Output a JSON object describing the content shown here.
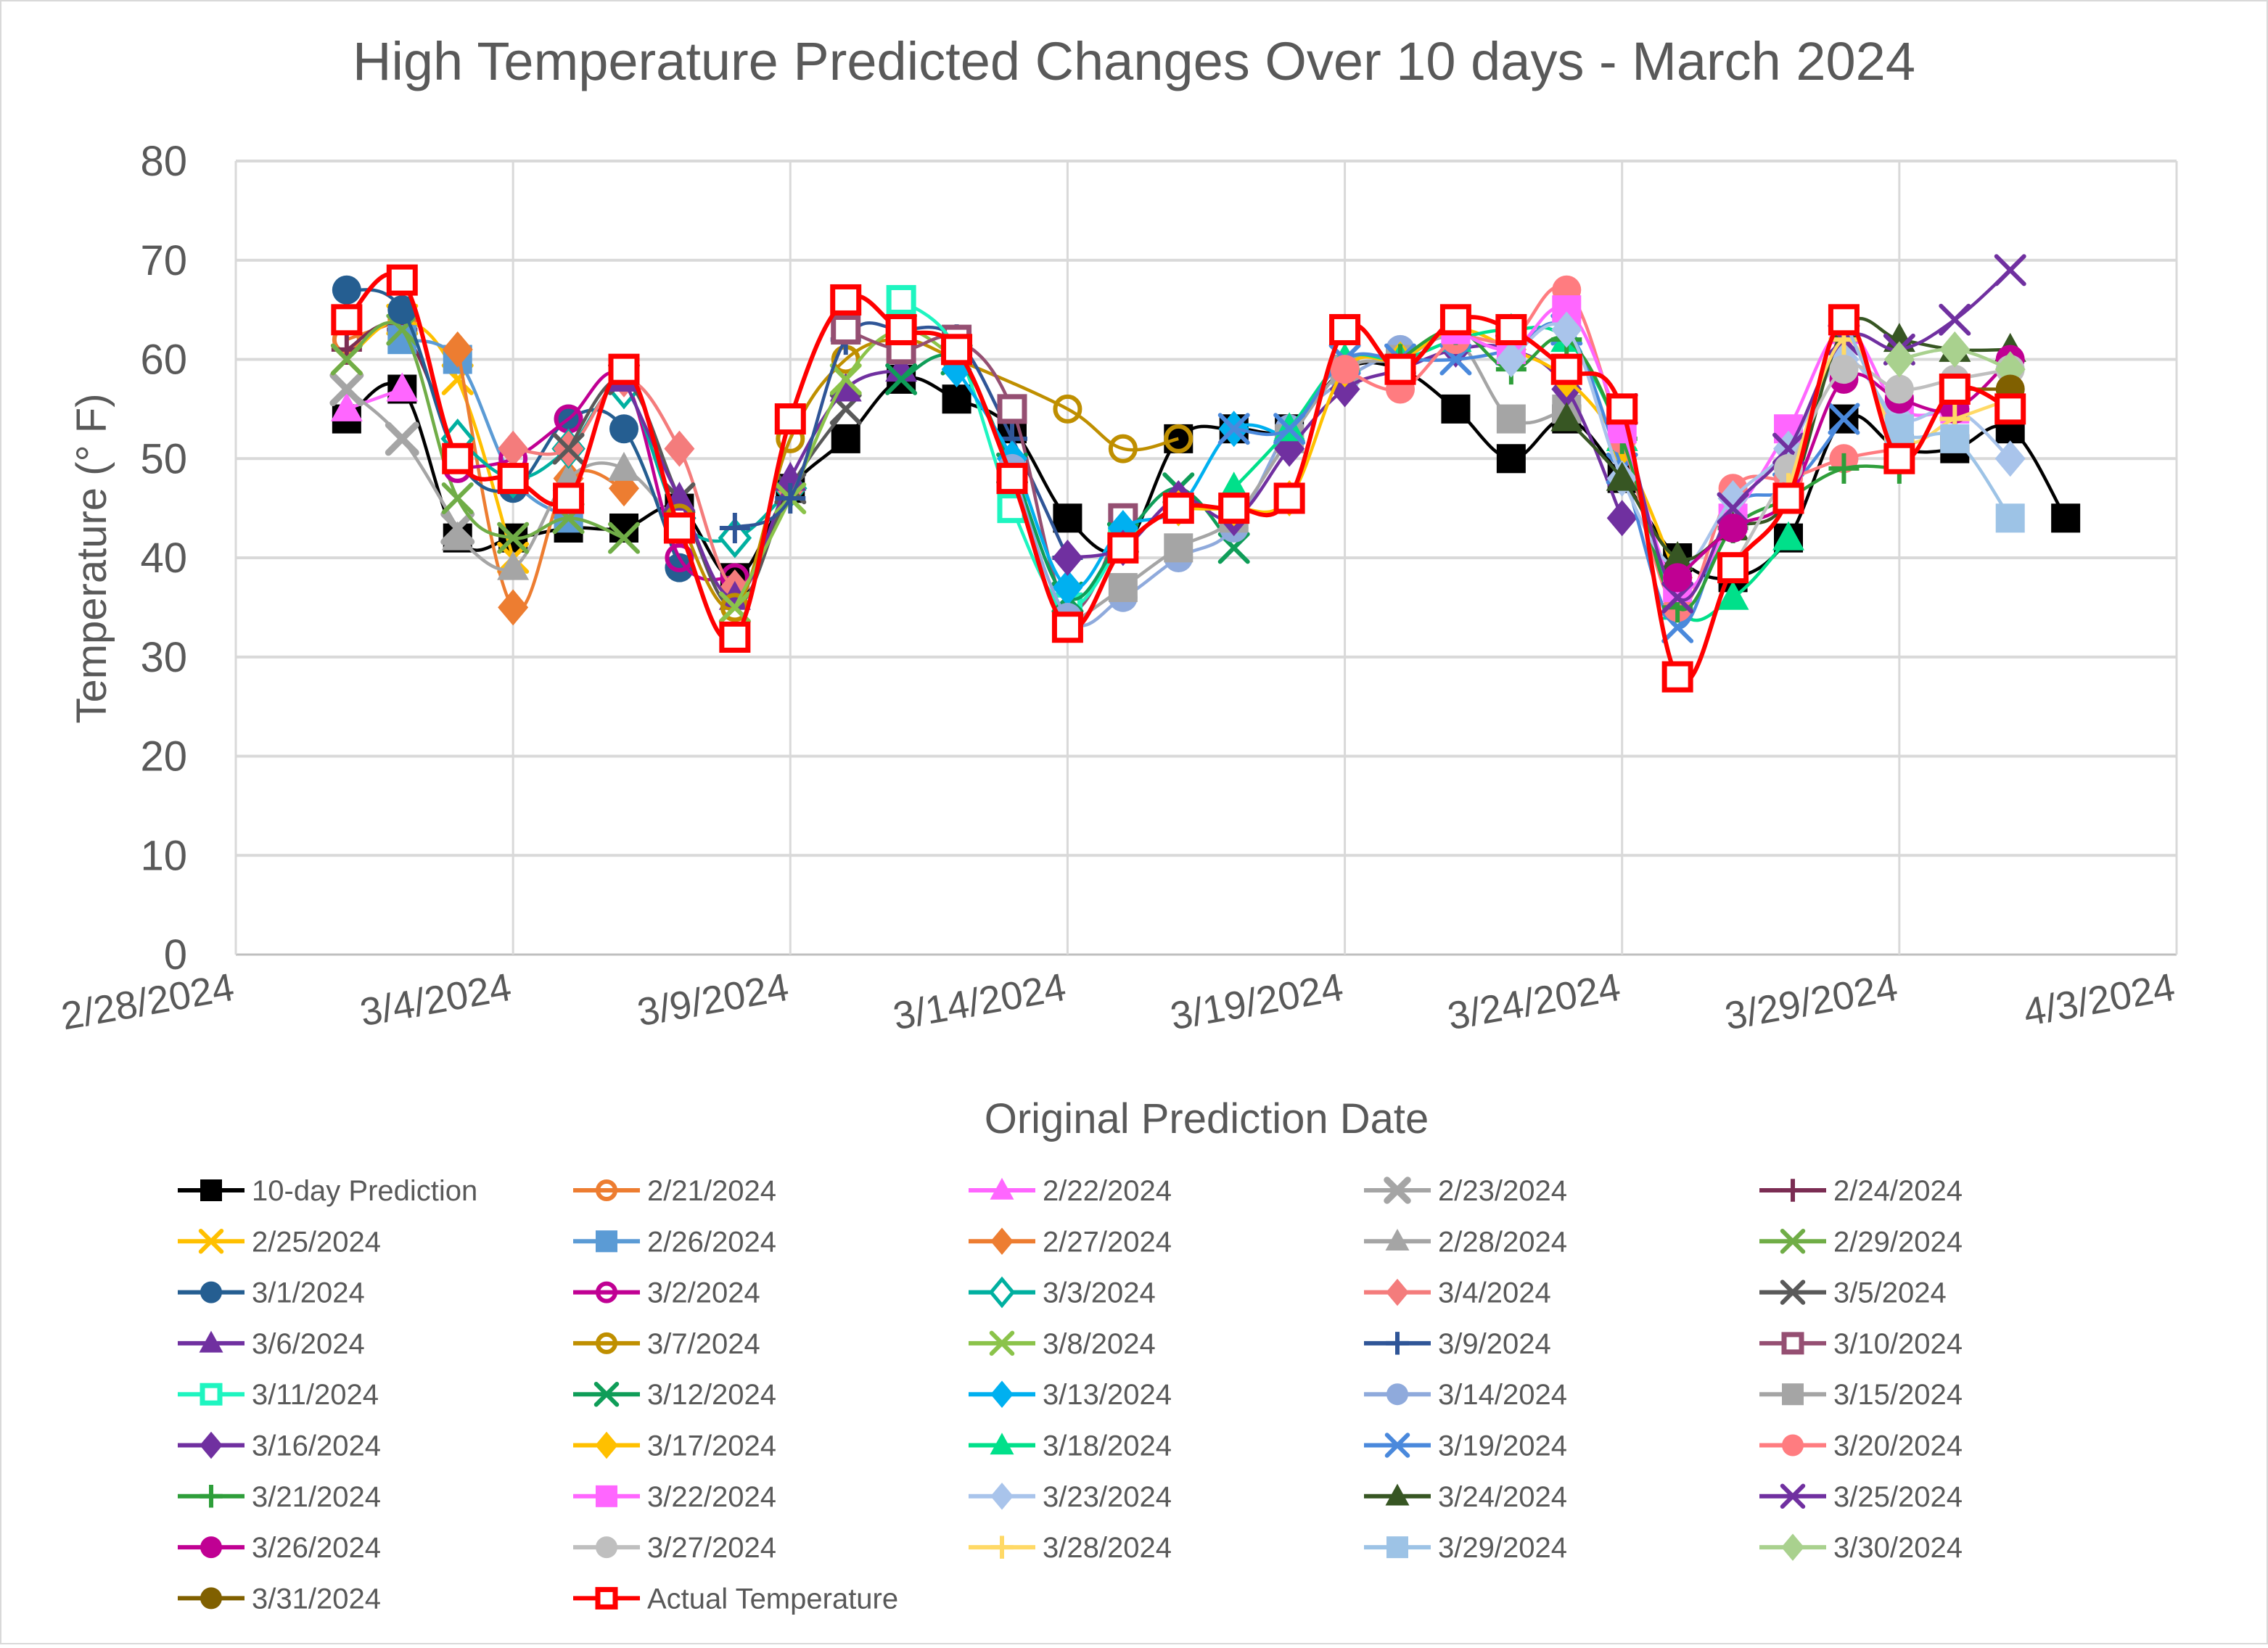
{
  "chart_data": {
    "type": "line",
    "title": "High Temperature Predicted Changes Over 10 days - March 2024",
    "xlabel": "Original Prediction Date",
    "ylabel": "Temperature (° F)",
    "ylim": [
      0,
      80
    ],
    "yticks": [
      0,
      10,
      20,
      30,
      40,
      50,
      60,
      70,
      80
    ],
    "xlim_day": [
      0,
      35
    ],
    "xticks": [
      {
        "day": 0,
        "label": "2/28/2024"
      },
      {
        "day": 5,
        "label": "3/4/2024"
      },
      {
        "day": 10,
        "label": "3/9/2024"
      },
      {
        "day": 15,
        "label": "3/14/2024"
      },
      {
        "day": 20,
        "label": "3/19/2024"
      },
      {
        "day": 25,
        "label": "3/24/2024"
      },
      {
        "day": 30,
        "label": "3/29/2024"
      },
      {
        "day": 35,
        "label": "4/3/2024"
      }
    ],
    "grid": true,
    "legend_position": "bottom",
    "x_day_origin": "2/28/2024",
    "series": [
      {
        "name": "10-day Prediction",
        "color": "#000000",
        "marker": "square",
        "x": [
          2,
          3,
          4,
          5,
          6,
          7,
          8,
          9,
          10,
          11,
          12,
          13,
          14,
          15,
          16,
          17,
          18,
          19,
          20,
          21,
          22,
          23,
          24,
          25,
          26,
          27,
          28,
          29,
          30,
          31,
          32,
          33
        ],
        "values": [
          54,
          57,
          42,
          42,
          43,
          43,
          45,
          38,
          47,
          52,
          58,
          56,
          53,
          44,
          41,
          52,
          53,
          53,
          59,
          59,
          55,
          50,
          54,
          48,
          40,
          38,
          42,
          54,
          51,
          51,
          53,
          44
        ]
      },
      {
        "name": "2/21/2024",
        "color": "#ED7D31",
        "marker": "circle-open",
        "x": [
          2,
          3
        ],
        "values": [
          62,
          64
        ]
      },
      {
        "name": "2/22/2024",
        "color": "#FF66FF",
        "marker": "triangle",
        "x": [
          2,
          3
        ],
        "values": [
          55,
          57
        ]
      },
      {
        "name": "2/23/2024",
        "color": "#A5A5A5",
        "marker": "x-bold",
        "x": [
          2,
          3,
          4
        ],
        "values": [
          57,
          52,
          43
        ]
      },
      {
        "name": "2/24/2024",
        "color": "#7B2D53",
        "marker": "plus",
        "x": [
          2,
          3,
          4
        ],
        "values": [
          61,
          63,
          50
        ]
      },
      {
        "name": "2/25/2024",
        "color": "#FFC000",
        "marker": "x",
        "x": [
          2,
          3,
          4,
          5
        ],
        "values": [
          60,
          64,
          58,
          40
        ]
      },
      {
        "name": "2/26/2024",
        "color": "#5B9BD5",
        "marker": "square",
        "x": [
          3,
          4,
          5,
          6
        ],
        "values": [
          62,
          60,
          48,
          44
        ]
      },
      {
        "name": "2/27/2024",
        "color": "#ED7D31",
        "marker": "diamond",
        "x": [
          4,
          5,
          6,
          7
        ],
        "values": [
          61,
          35,
          48,
          47
        ]
      },
      {
        "name": "2/28/2024",
        "color": "#A5A5A5",
        "marker": "triangle",
        "x": [
          4,
          5,
          6,
          7,
          8
        ],
        "values": [
          42,
          39,
          48,
          49,
          43
        ]
      },
      {
        "name": "2/29/2024",
        "color": "#70AD47",
        "marker": "x",
        "x": [
          2,
          3,
          4,
          5,
          6,
          7
        ],
        "values": [
          60,
          63,
          46,
          42,
          44,
          42
        ]
      },
      {
        "name": "3/1/2024",
        "color": "#255E91",
        "marker": "circle",
        "x": [
          2,
          3,
          4,
          5,
          6,
          7,
          8
        ],
        "values": [
          67,
          65,
          50,
          47,
          54,
          53,
          39
        ]
      },
      {
        "name": "3/2/2024",
        "color": "#C00093",
        "marker": "circle-open",
        "x": [
          4,
          5,
          6,
          7,
          8,
          9
        ],
        "values": [
          49,
          50,
          54,
          58,
          40,
          38
        ]
      },
      {
        "name": "3/3/2024",
        "color": "#00B0A0",
        "marker": "diamond-open",
        "x": [
          4,
          5,
          6,
          7,
          8,
          9,
          10
        ],
        "values": [
          52,
          48,
          51,
          57,
          44,
          42,
          47
        ]
      },
      {
        "name": "3/4/2024",
        "color": "#F47C7C",
        "marker": "diamond",
        "x": [
          5,
          6,
          7,
          8,
          9,
          10
        ],
        "values": [
          51,
          51,
          58,
          51,
          37,
          47
        ]
      },
      {
        "name": "3/5/2024",
        "color": "#595959",
        "marker": "x",
        "x": [
          6,
          7,
          8,
          9,
          10,
          11
        ],
        "values": [
          51,
          58,
          46,
          35,
          47,
          55
        ]
      },
      {
        "name": "3/6/2024",
        "color": "#7030A0",
        "marker": "triangle",
        "x": [
          7,
          8,
          9,
          10,
          11,
          12
        ],
        "values": [
          58,
          46,
          36,
          48,
          57,
          59
        ]
      },
      {
        "name": "3/7/2024",
        "color": "#BF8F00",
        "marker": "circle-open",
        "x": [
          8,
          9,
          10,
          11,
          12,
          13,
          15,
          16,
          17
        ],
        "values": [
          44,
          35,
          52,
          60,
          62,
          60,
          55,
          51,
          52
        ]
      },
      {
        "name": "3/8/2024",
        "color": "#8BC34A",
        "marker": "x",
        "x": [
          9,
          10,
          11,
          12,
          13
        ],
        "values": [
          35,
          46,
          58,
          63,
          60
        ]
      },
      {
        "name": "3/9/2024",
        "color": "#2F5597",
        "marker": "plus",
        "x": [
          9,
          10,
          11,
          12,
          13,
          14,
          15
        ],
        "values": [
          43,
          46,
          62,
          63,
          62,
          52,
          40
        ]
      },
      {
        "name": "3/10/2024",
        "color": "#954F72",
        "marker": "square-open",
        "x": [
          11,
          12,
          13,
          14,
          15,
          16
        ],
        "values": [
          63,
          61,
          62,
          55,
          35,
          44
        ]
      },
      {
        "name": "3/11/2024",
        "color": "#1EF5C0",
        "marker": "square-open",
        "x": [
          12,
          13,
          14,
          15,
          16
        ],
        "values": [
          66,
          61,
          45,
          35,
          42
        ]
      },
      {
        "name": "3/12/2024",
        "color": "#0F9D58",
        "marker": "x",
        "x": [
          12,
          13,
          14,
          15,
          16,
          17,
          18
        ],
        "values": [
          58,
          60,
          49,
          36,
          42,
          47,
          41
        ]
      },
      {
        "name": "3/13/2024",
        "color": "#00B0F0",
        "marker": "diamond",
        "x": [
          13,
          14,
          15,
          16,
          17,
          18,
          19
        ],
        "values": [
          59,
          50,
          37,
          43,
          45,
          53,
          52
        ]
      },
      {
        "name": "3/14/2024",
        "color": "#8FAADC",
        "marker": "circle",
        "x": [
          14,
          15,
          16,
          17,
          18,
          19,
          20,
          21
        ],
        "values": [
          49,
          34,
          36,
          40,
          43,
          53,
          58,
          61
        ]
      },
      {
        "name": "3/15/2024",
        "color": "#A5A5A5",
        "marker": "square",
        "x": [
          15,
          16,
          17,
          18,
          19,
          20,
          21,
          22,
          23,
          24
        ],
        "values": [
          33,
          37,
          41,
          44,
          52,
          59,
          60,
          62,
          54,
          55
        ]
      },
      {
        "name": "3/16/2024",
        "color": "#7030A0",
        "marker": "diamond",
        "x": [
          15,
          16,
          17,
          18,
          19,
          20,
          21,
          22,
          23,
          24,
          25
        ],
        "values": [
          40,
          41,
          46,
          44,
          51,
          57,
          59,
          61,
          61,
          57,
          44
        ]
      },
      {
        "name": "3/17/2024",
        "color": "#FFC000",
        "marker": "diamond",
        "x": [
          17,
          18,
          19,
          20,
          21,
          22,
          23,
          24,
          25,
          26
        ],
        "values": [
          45,
          45,
          46,
          59,
          60,
          63,
          61,
          58,
          51,
          38
        ]
      },
      {
        "name": "3/18/2024",
        "color": "#00E08A",
        "marker": "triangle",
        "x": [
          18,
          19,
          20,
          21,
          22,
          23,
          24,
          25,
          26,
          27,
          28
        ],
        "values": [
          47,
          53,
          60,
          60,
          62,
          63,
          62,
          52,
          35,
          36,
          42
        ]
      },
      {
        "name": "3/19/2024",
        "color": "#4A89DC",
        "marker": "x",
        "x": [
          18,
          19,
          20,
          21,
          22,
          23,
          24,
          25,
          26,
          27,
          28,
          29
        ],
        "values": [
          53,
          53,
          60,
          60,
          60,
          61,
          63,
          49,
          33,
          45,
          47,
          54
        ]
      },
      {
        "name": "3/20/2024",
        "color": "#FF7C80",
        "marker": "circle",
        "x": [
          20,
          21,
          22,
          23,
          24,
          25,
          26,
          27,
          28,
          29,
          30
        ],
        "values": [
          59,
          57,
          62,
          62,
          67,
          52,
          35,
          47,
          48,
          50,
          51
        ]
      },
      {
        "name": "3/21/2024",
        "color": "#2E9E3A",
        "marker": "plus",
        "x": [
          21,
          22,
          23,
          24,
          25,
          26,
          27,
          28,
          29,
          30
        ],
        "values": [
          60,
          63,
          59,
          62,
          52,
          35,
          43,
          46,
          49,
          49
        ]
      },
      {
        "name": "3/22/2024",
        "color": "#FF66FF",
        "marker": "square",
        "x": [
          22,
          23,
          24,
          25,
          26,
          27,
          28,
          29,
          30,
          31
        ],
        "values": [
          63,
          61,
          65,
          53,
          37,
          44,
          53,
          63,
          55,
          55
        ]
      },
      {
        "name": "3/23/2024",
        "color": "#A9C4EB",
        "marker": "diamond",
        "x": [
          23,
          24,
          25,
          26,
          27,
          28,
          29,
          30,
          31,
          32
        ],
        "values": [
          60,
          63,
          48,
          39,
          46,
          51,
          60,
          54,
          55,
          50
        ]
      },
      {
        "name": "3/24/2024",
        "color": "#375623",
        "marker": "triangle",
        "x": [
          24,
          25,
          26,
          27,
          28,
          29,
          30,
          31,
          32
        ],
        "values": [
          54,
          48,
          40,
          43,
          46,
          63,
          62,
          61,
          61
        ]
      },
      {
        "name": "3/25/2024",
        "color": "#7030A0",
        "marker": "x",
        "x": [
          25,
          26,
          27,
          28,
          29,
          30,
          31,
          32
        ],
        "values": [
          55,
          36,
          45,
          51,
          62,
          61,
          64,
          69
        ]
      },
      {
        "name": "3/26/2024",
        "color": "#C00093",
        "marker": "circle",
        "x": [
          26,
          27,
          28,
          29,
          30,
          31,
          32
        ],
        "values": [
          38,
          43,
          46,
          58,
          56,
          55,
          60
        ]
      },
      {
        "name": "3/27/2024",
        "color": "#BFBFBF",
        "marker": "circle",
        "x": [
          27,
          28,
          29,
          30,
          31,
          32
        ],
        "values": [
          39,
          49,
          59,
          57,
          58,
          59
        ]
      },
      {
        "name": "3/28/2024",
        "color": "#FFD966",
        "marker": "plus",
        "x": [
          28,
          29,
          30,
          31,
          32
        ],
        "values": [
          47,
          62,
          52,
          54,
          56
        ]
      },
      {
        "name": "3/29/2024",
        "color": "#9DC3E6",
        "marker": "square",
        "x": [
          29,
          30,
          31,
          32
        ],
        "values": [
          64,
          53,
          52,
          44
        ]
      },
      {
        "name": "3/30/2024",
        "color": "#A9D18E",
        "marker": "diamond",
        "x": [
          30,
          31,
          32
        ],
        "values": [
          60,
          61,
          59
        ]
      },
      {
        "name": "3/31/2024",
        "color": "#806000",
        "marker": "circle",
        "x": [
          31,
          32
        ],
        "values": [
          57,
          57
        ]
      },
      {
        "name": "Actual Temperature",
        "color": "#FF0000",
        "marker": "square-open",
        "x": [
          2,
          3,
          4,
          5,
          6,
          7,
          8,
          9,
          10,
          11,
          12,
          13,
          14,
          15,
          16,
          17,
          18,
          19,
          20,
          21,
          22,
          23,
          24,
          25,
          26,
          27,
          28,
          29,
          30,
          31,
          32
        ],
        "values": [
          64,
          68,
          50,
          48,
          46,
          59,
          43,
          32,
          54,
          66,
          63,
          61,
          48,
          33,
          41,
          45,
          45,
          46,
          63,
          59,
          64,
          63,
          59,
          55,
          28,
          39,
          46,
          64,
          50,
          57,
          55
        ]
      }
    ]
  }
}
